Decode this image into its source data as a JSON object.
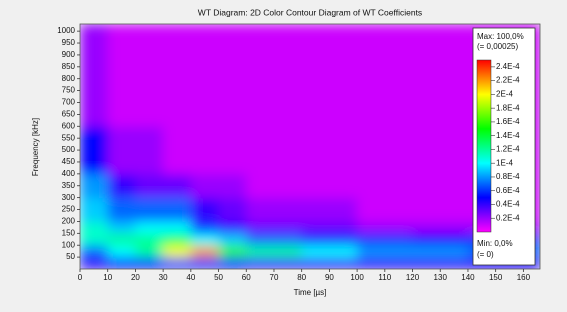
{
  "chart_data": {
    "type": "heatmap",
    "title": "WT Diagram: 2D Color Contour Diagram of WT Coefficients",
    "x_label": "Time [µs]",
    "y_label": "Frequency [kHz]",
    "x_bins": [
      0,
      10,
      20,
      30,
      40,
      50,
      60,
      80,
      100,
      120,
      140,
      166
    ],
    "y_bins": [
      0,
      50,
      100,
      150,
      200,
      300,
      400,
      600,
      1030
    ],
    "z": [
      [
        4e-05,
        5e-05,
        5e-05,
        6e-05,
        6e-05,
        5e-05,
        4e-05,
        4e-05,
        4e-05,
        4e-05,
        4e-05
      ],
      [
        7e-05,
        0.0001,
        0.00012,
        0.0002,
        0.00022,
        0.00016,
        0.00012,
        0.0001,
        8e-05,
        8e-05,
        7e-05
      ],
      [
        0.00011,
        0.00012,
        0.00012,
        0.00013,
        0.0001,
        9e-05,
        7e-05,
        6e-05,
        6e-05,
        5e-05,
        6e-05
      ],
      [
        0.00011,
        9e-05,
        0.0001,
        0.0001,
        6e-05,
        4e-05,
        3e-05,
        3e-05,
        2e-05,
        2e-05,
        2e-05
      ],
      [
        9e-05,
        7e-05,
        7e-05,
        7e-05,
        4e-05,
        3e-05,
        2e-05,
        2e-05,
        1e-05,
        1e-05,
        1e-05
      ],
      [
        8e-05,
        4e-05,
        3e-05,
        3e-05,
        2e-05,
        2e-05,
        1e-05,
        1e-05,
        1e-05,
        1e-05,
        1e-05
      ],
      [
        5e-05,
        2e-05,
        2e-05,
        1e-05,
        1e-05,
        1e-05,
        1e-05,
        1e-05,
        1e-05,
        1e-05,
        1e-05
      ],
      [
        2e-05,
        1e-05,
        1e-05,
        1e-05,
        1e-05,
        1e-05,
        1e-05,
        1e-05,
        1e-05,
        1e-05,
        1e-05
      ]
    ],
    "xlim": [
      0,
      166
    ],
    "xticks": [
      0,
      10,
      20,
      30,
      40,
      50,
      60,
      70,
      80,
      90,
      100,
      110,
      120,
      130,
      140,
      150,
      160
    ],
    "ylim": [
      0,
      1030
    ],
    "yticks": [
      50,
      100,
      150,
      200,
      250,
      300,
      350,
      400,
      450,
      500,
      550,
      600,
      650,
      700,
      750,
      800,
      850,
      900,
      950,
      1000
    ],
    "zlim": [
      0,
      0.00025
    ],
    "colormap": [
      "#ff00ff",
      "#0000ff",
      "#00ffff",
      "#00ff00",
      "#ffff00",
      "#ff0000"
    ],
    "colorbar_ticks": [
      {
        "value": 2e-05,
        "label": "0.2E-4"
      },
      {
        "value": 4e-05,
        "label": "0.4E-4"
      },
      {
        "value": 6e-05,
        "label": "0.6E-4"
      },
      {
        "value": 8e-05,
        "label": "0.8E-4"
      },
      {
        "value": 0.0001,
        "label": "1E-4"
      },
      {
        "value": 0.00012,
        "label": "1.2E-4"
      },
      {
        "value": 0.00014,
        "label": "1.4E-4"
      },
      {
        "value": 0.00016,
        "label": "1.6E-4"
      },
      {
        "value": 0.00018,
        "label": "1.8E-4"
      },
      {
        "value": 0.0002,
        "label": "2E-4"
      },
      {
        "value": 0.00022,
        "label": "2.2E-4"
      },
      {
        "value": 0.00024,
        "label": "2.4E-4"
      }
    ],
    "max_label": "Max: 100,0%",
    "max_value_label": "(= 0,00025)",
    "min_label": "Min: 0,0%",
    "min_value_label": "(= 0)"
  }
}
